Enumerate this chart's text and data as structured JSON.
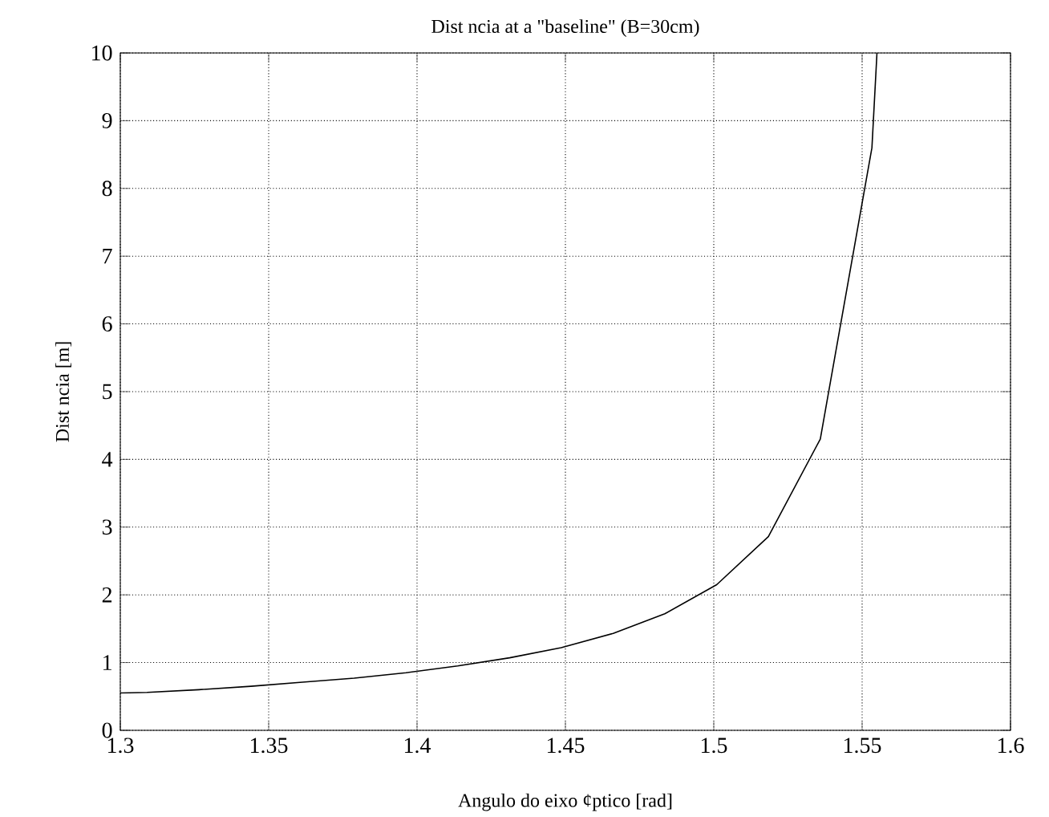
{
  "chart_data": {
    "type": "line",
    "title": "Dist ncia at  a \"baseline\" (B=30cm)",
    "xlabel": "Angulo do eixo ¢ptico [rad]",
    "ylabel": "Dist ncia [m]",
    "x": [
      1.3,
      1.309,
      1.3265,
      1.344,
      1.3614,
      1.3788,
      1.3963,
      1.4137,
      1.4312,
      1.4486,
      1.4661,
      1.4835,
      1.501,
      1.5184,
      1.5359,
      1.5533,
      1.555
    ],
    "series": [
      {
        "color": "#000000",
        "values": [
          0.55,
          0.56,
          0.6,
          0.65,
          0.71,
          0.77,
          0.85,
          0.95,
          1.07,
          1.22,
          1.43,
          1.72,
          2.15,
          2.86,
          4.3,
          8.6,
          10
        ]
      }
    ],
    "xlim": [
      1.3,
      1.6
    ],
    "ylim": [
      0,
      10
    ],
    "xticks": [
      1.3,
      1.35,
      1.4,
      1.45,
      1.5,
      1.55,
      1.6
    ],
    "yticks": [
      0,
      1,
      2,
      3,
      4,
      5,
      6,
      7,
      8,
      9,
      10
    ],
    "grid": true,
    "line_style": "solid"
  }
}
